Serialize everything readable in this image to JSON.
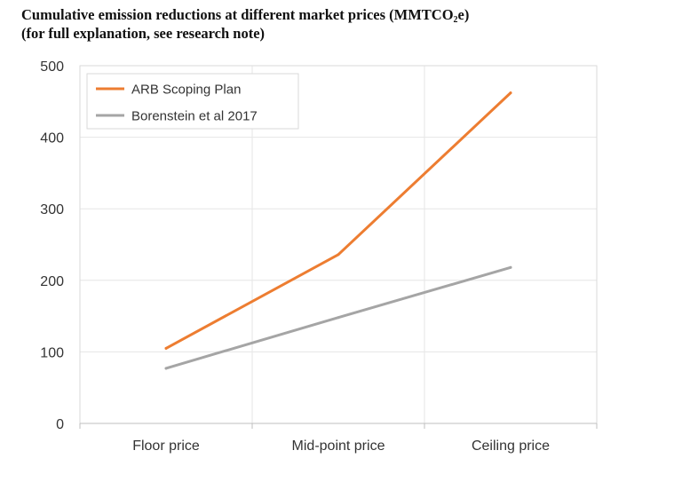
{
  "title": {
    "line1_prefix": "Cumulative emission reductions at different market prices (MMTCO",
    "line1_subscript": "2",
    "line1_suffix": "e)",
    "line2": "(for full explanation, see research note)"
  },
  "chart_data": {
    "type": "line",
    "categories": [
      "Floor price",
      "Mid-point price",
      "Ceiling price"
    ],
    "series": [
      {
        "name": "ARB Scoping Plan",
        "values": [
          105,
          236,
          462
        ],
        "color": "#ED7D31"
      },
      {
        "name": "Borenstein et al 2017",
        "values": [
          77,
          148,
          218
        ],
        "color": "#A5A5A5"
      }
    ],
    "ylim": [
      0,
      500
    ],
    "yticks": [
      0,
      100,
      200,
      300,
      400,
      500
    ],
    "xlabel": "",
    "ylabel": "",
    "grid": true,
    "legend_position": "top-left"
  }
}
